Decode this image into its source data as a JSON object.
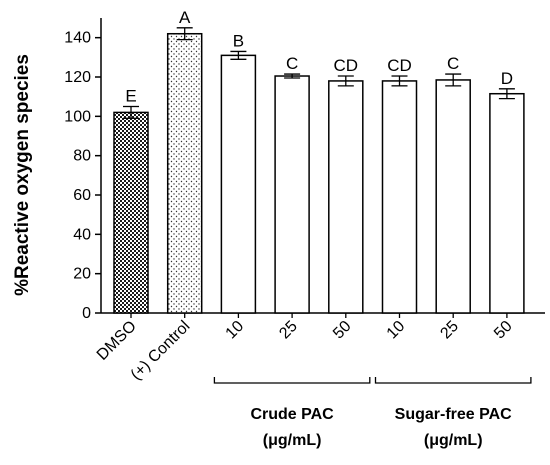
{
  "chart_data": {
    "type": "bar",
    "ylabel": "%Reactive oxygen species",
    "ylim": [
      0,
      150
    ],
    "yticks": [
      0,
      20,
      40,
      60,
      80,
      100,
      120,
      140
    ],
    "categories": [
      "DMSO",
      "(+) Control",
      "10",
      "25",
      "50",
      "10",
      "25",
      "50"
    ],
    "values": [
      102,
      142,
      131,
      120.5,
      118,
      118,
      118.5,
      111.5
    ],
    "errors": [
      3,
      3,
      2,
      1,
      2.5,
      2.5,
      3,
      2.5
    ],
    "significance_letters": [
      "E",
      "A",
      "B",
      "C",
      "CD",
      "CD",
      "C",
      "D"
    ],
    "bar_fills": [
      "checker",
      "dots",
      "white",
      "white",
      "white",
      "white",
      "white",
      "white"
    ],
    "groups": [
      {
        "label": "Crude PAC",
        "unit": "(μg/mL)",
        "from": 2,
        "to": 4
      },
      {
        "label": "Sugar-free PAC",
        "unit": "(μg/mL)",
        "from": 5,
        "to": 7
      }
    ],
    "grid": false,
    "legend": "none"
  }
}
